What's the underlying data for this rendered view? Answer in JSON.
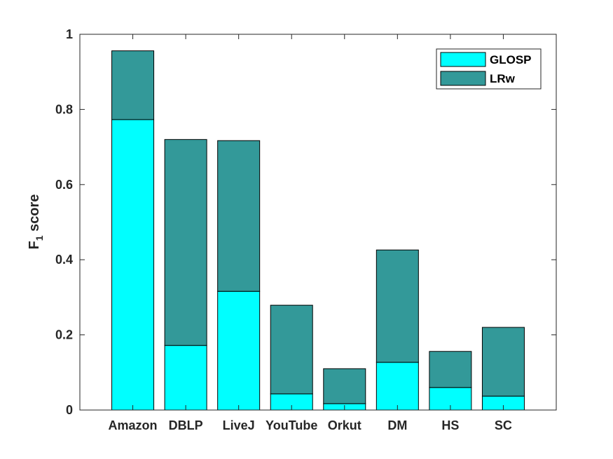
{
  "chart_data": {
    "type": "bar",
    "stacked": true,
    "categories": [
      "Amazon",
      "DBLP",
      "LiveJ",
      "YouTube",
      "Orkut",
      "DM",
      "HS",
      "SC"
    ],
    "series": [
      {
        "name": "GLOSP",
        "values": [
          0.773,
          0.172,
          0.316,
          0.043,
          0.017,
          0.127,
          0.06,
          0.037
        ],
        "color": "#00FFFF"
      },
      {
        "name": "LRw",
        "values": [
          0.183,
          0.548,
          0.401,
          0.236,
          0.093,
          0.299,
          0.096,
          0.183
        ],
        "color": "#339999"
      }
    ],
    "title": "",
    "xlabel": "",
    "ylabel": {
      "main": "F",
      "subscript": "1",
      "rest": " score"
    },
    "ylim": [
      0,
      1
    ],
    "yticks": [
      "0",
      "0.2",
      "0.4",
      "0.6",
      "0.8",
      "1"
    ],
    "grid": false,
    "legend_position": "top-right"
  }
}
